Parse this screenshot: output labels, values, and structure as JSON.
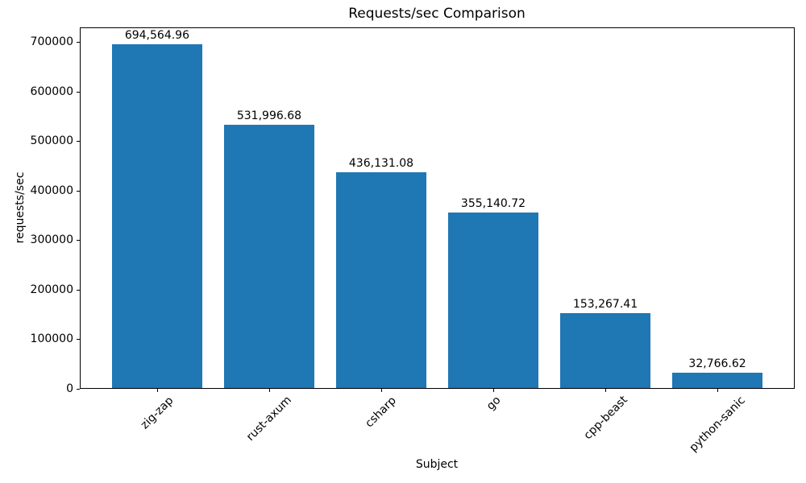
{
  "chart_data": {
    "type": "bar",
    "title": "Requests/sec Comparison",
    "xlabel": "Subject",
    "ylabel": "requests/sec",
    "categories": [
      "zig-zap",
      "rust-axum",
      "csharp",
      "go",
      "cpp-beast",
      "python-sanic"
    ],
    "values": [
      694564.96,
      531996.68,
      436131.08,
      355140.72,
      153267.41,
      32766.62
    ],
    "value_labels": [
      "694,564.96",
      "531,996.68",
      "436,131.08",
      "355,140.72",
      "153,267.41",
      "32,766.62"
    ],
    "yticks": [
      0,
      100000,
      200000,
      300000,
      400000,
      500000,
      600000,
      700000
    ],
    "ytick_labels": [
      "0",
      "100000",
      "200000",
      "300000",
      "400000",
      "500000",
      "600000",
      "700000"
    ],
    "ylim": [
      0,
      729293
    ],
    "x_tick_rotation_deg": 45,
    "bar_color": "#1f77b4",
    "grid": false,
    "legend": false
  }
}
